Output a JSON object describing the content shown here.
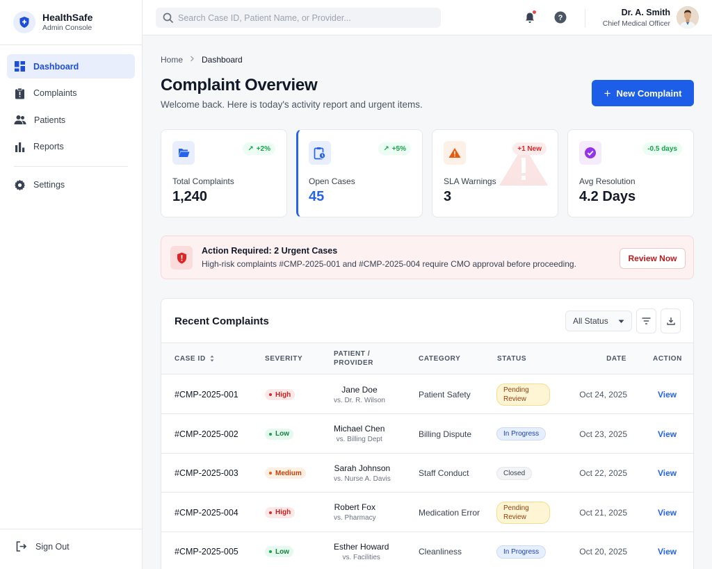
{
  "brand": {
    "name": "HealthSafe",
    "subtitle": "Admin Console"
  },
  "sidebar": {
    "items": [
      {
        "label": "Dashboard",
        "icon": "dashboard-icon",
        "active": true
      },
      {
        "label": "Complaints",
        "icon": "clipboard-alert-icon"
      },
      {
        "label": "Patients",
        "icon": "people-icon"
      },
      {
        "label": "Reports",
        "icon": "bar-chart-icon"
      }
    ],
    "settings_label": "Settings",
    "signout_label": "Sign Out"
  },
  "topbar": {
    "search_placeholder": "Search Case ID, Patient Name, or Provider...",
    "user_name": "Dr. A. Smith",
    "user_role": "Chief Medical Officer"
  },
  "breadcrumb": {
    "home": "Home",
    "current": "Dashboard"
  },
  "header": {
    "title": "Complaint Overview",
    "subtitle": "Welcome back. Here is today's activity report and urgent items.",
    "new_button": "New Complaint"
  },
  "stats": [
    {
      "label": "Total Complaints",
      "value": "1,240",
      "trend": "+2%",
      "icon": "folder-open-icon",
      "color": "#2563eb"
    },
    {
      "label": "Open Cases",
      "value": "45",
      "trend": "+5%",
      "icon": "clipboard-clock-icon",
      "color": "#2563eb"
    },
    {
      "label": "SLA Warnings",
      "value": "3",
      "trend": "+1 New",
      "icon": "warning-icon",
      "color": "#ea580c"
    },
    {
      "label": "Avg Resolution",
      "value": "4.2 Days",
      "trend": "-0.5 days",
      "icon": "check-circle-icon",
      "color": "#9333ea"
    }
  ],
  "alert": {
    "title": "Action Required: 2 Urgent Cases",
    "text": "High-risk complaints #CMP-2025-001 and #CMP-2025-004 require CMO approval before proceeding.",
    "button": "Review Now"
  },
  "table": {
    "title": "Recent Complaints",
    "filter_value": "All Status",
    "columns": [
      "Case ID",
      "Severity",
      "Patient / Provider",
      "Category",
      "Status",
      "Date",
      "Action"
    ],
    "rows": [
      {
        "id": "#CMP-2025-001",
        "severity": "High",
        "patient": "Jane Doe",
        "provider": "vs. Dr. R. Wilson",
        "category": "Patient Safety",
        "status": "Pending Review",
        "date": "Oct 24, 2025",
        "action": "View"
      },
      {
        "id": "#CMP-2025-002",
        "severity": "Low",
        "patient": "Michael Chen",
        "provider": "vs. Billing Dept",
        "category": "Billing Dispute",
        "status": "In Progress",
        "date": "Oct 23, 2025",
        "action": "View"
      },
      {
        "id": "#CMP-2025-003",
        "severity": "Medium",
        "patient": "Sarah Johnson",
        "provider": "vs. Nurse A. Davis",
        "category": "Staff Conduct",
        "status": "Closed",
        "date": "Oct 22, 2025",
        "action": "View"
      },
      {
        "id": "#CMP-2025-004",
        "severity": "High",
        "patient": "Robert Fox",
        "provider": "vs. Pharmacy",
        "category": "Medication Error",
        "status": "Pending Review",
        "date": "Oct 21, 2025",
        "action": "View"
      },
      {
        "id": "#CMP-2025-005",
        "severity": "Low",
        "patient": "Esther Howard",
        "provider": "vs. Facilities",
        "category": "Cleanliness",
        "status": "In Progress",
        "date": "Oct 20, 2025",
        "action": "View"
      }
    ]
  },
  "colors": {
    "primary": "#1d5ee8",
    "danger": "#dc2626",
    "accent_bg": "#e8eefc"
  }
}
